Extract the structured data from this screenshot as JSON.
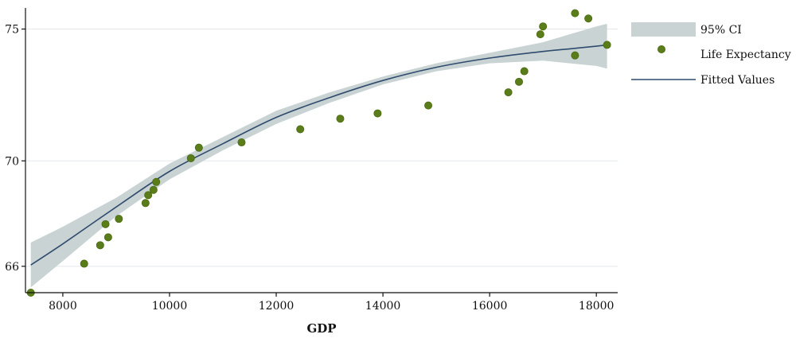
{
  "chart_data": {
    "type": "scatter",
    "xlabel": "GDP",
    "ylabel": "",
    "xlim": [
      7300,
      18400
    ],
    "ylim": [
      65,
      75.8
    ],
    "x_ticks": [
      8000,
      10000,
      12000,
      14000,
      16000,
      18000
    ],
    "y_ticks": [
      66,
      70,
      75
    ],
    "grid": true,
    "legend_position": "right",
    "series": [
      {
        "name": "95% CI",
        "kind": "band",
        "color": "#c9d3d3",
        "x": [
          7400,
          8000,
          9000,
          10000,
          11000,
          12000,
          13000,
          14000,
          15000,
          16000,
          17000,
          17500,
          18000,
          18200
        ],
        "lower": [
          65.2,
          66.2,
          67.9,
          69.3,
          70.4,
          71.4,
          72.2,
          72.9,
          73.4,
          73.7,
          73.8,
          73.7,
          73.6,
          73.5
        ],
        "upper": [
          66.9,
          67.5,
          68.6,
          69.9,
          70.9,
          71.9,
          72.6,
          73.2,
          73.7,
          74.1,
          74.5,
          74.8,
          75.1,
          75.2
        ]
      },
      {
        "name": "Life Expectancy",
        "kind": "scatter",
        "color": "#5a7d1a",
        "x": [
          7400,
          8400,
          8700,
          8800,
          8850,
          9050,
          9550,
          9600,
          9700,
          9750,
          10400,
          10550,
          11350,
          12450,
          13200,
          13900,
          14850,
          16350,
          16550,
          16650,
          16950,
          17000,
          17600,
          17600,
          17850,
          18200
        ],
        "y": [
          65.0,
          66.1,
          66.8,
          67.6,
          67.1,
          67.8,
          68.4,
          68.7,
          68.9,
          69.2,
          70.1,
          70.5,
          70.7,
          71.2,
          71.6,
          71.8,
          72.1,
          72.6,
          73.0,
          73.4,
          74.8,
          75.1,
          74.0,
          75.6,
          75.4,
          74.4
        ]
      },
      {
        "name": "Fitted Values",
        "kind": "line",
        "color": "#2f4b6e",
        "x": [
          7400,
          8000,
          9000,
          10000,
          11000,
          12000,
          13000,
          14000,
          15000,
          16000,
          17000,
          17500,
          18000,
          18200
        ],
        "y": [
          66.05,
          66.85,
          68.25,
          69.6,
          70.65,
          71.65,
          72.4,
          73.05,
          73.55,
          73.9,
          74.15,
          74.25,
          74.35,
          74.4
        ]
      }
    ]
  }
}
